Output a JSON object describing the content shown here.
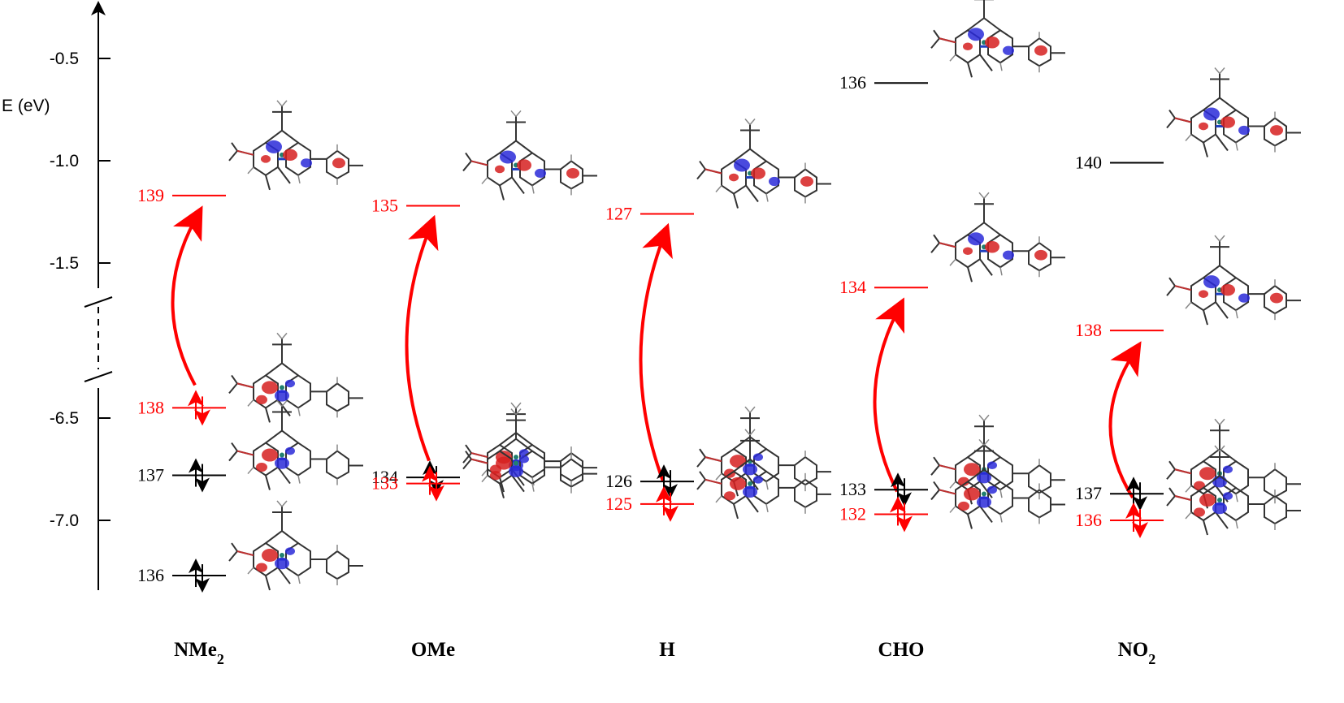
{
  "axis": {
    "label": "E (eV)",
    "ticks": [
      {
        "value": -0.5,
        "label": "-0.5"
      },
      {
        "value": -1.0,
        "label": "-1.0"
      },
      {
        "value": -1.5,
        "label": "-1.5"
      },
      {
        "value": -6.5,
        "label": "-6.5"
      },
      {
        "value": -7.0,
        "label": "-7.0"
      }
    ],
    "break_between": [
      -1.5,
      -6.5
    ]
  },
  "colors": {
    "occupied_black": "#000000",
    "highlight_red": "#ff0000",
    "orbital_pos": "#d62020",
    "orbital_neg": "#2a2ad8"
  },
  "substituents": [
    {
      "name_main": "NMe",
      "name_sub": "2",
      "levels": [
        {
          "label": "139",
          "energy": -1.17,
          "color": "red",
          "occupied": false
        },
        {
          "label": "138",
          "energy": -6.45,
          "color": "red",
          "occupied": true
        },
        {
          "label": "137",
          "energy": -6.78,
          "color": "black",
          "occupied": true
        },
        {
          "label": "136",
          "energy": -7.27,
          "color": "black",
          "occupied": true
        }
      ]
    },
    {
      "name_main": "OMe",
      "name_sub": "",
      "levels": [
        {
          "label": "135",
          "energy": -1.22,
          "color": "red",
          "occupied": false
        },
        {
          "label": "134",
          "energy": -6.79,
          "color": "black",
          "occupied": true
        },
        {
          "label": "133",
          "energy": -6.82,
          "color": "red",
          "occupied": true
        }
      ]
    },
    {
      "name_main": "H",
      "name_sub": "",
      "levels": [
        {
          "label": "127",
          "energy": -1.26,
          "color": "red",
          "occupied": false
        },
        {
          "label": "126",
          "energy": -6.81,
          "color": "black",
          "occupied": true
        },
        {
          "label": "125",
          "energy": -6.92,
          "color": "red",
          "occupied": true
        }
      ]
    },
    {
      "name_main": "CHO",
      "name_sub": "",
      "levels": [
        {
          "label": "136",
          "energy": -0.62,
          "color": "black",
          "occupied": false
        },
        {
          "label": "134",
          "energy": -1.62,
          "color": "red",
          "occupied": false
        },
        {
          "label": "133",
          "energy": -6.85,
          "color": "black",
          "occupied": true
        },
        {
          "label": "132",
          "energy": -6.97,
          "color": "red",
          "occupied": true
        }
      ]
    },
    {
      "name_main": "NO",
      "name_sub": "2",
      "levels": [
        {
          "label": "140",
          "energy": -1.01,
          "color": "black",
          "occupied": false
        },
        {
          "label": "138",
          "energy": -1.83,
          "color": "red",
          "occupied": false
        },
        {
          "label": "137",
          "energy": -6.87,
          "color": "black",
          "occupied": true
        },
        {
          "label": "136",
          "energy": -7.0,
          "color": "red",
          "occupied": true
        }
      ]
    }
  ]
}
